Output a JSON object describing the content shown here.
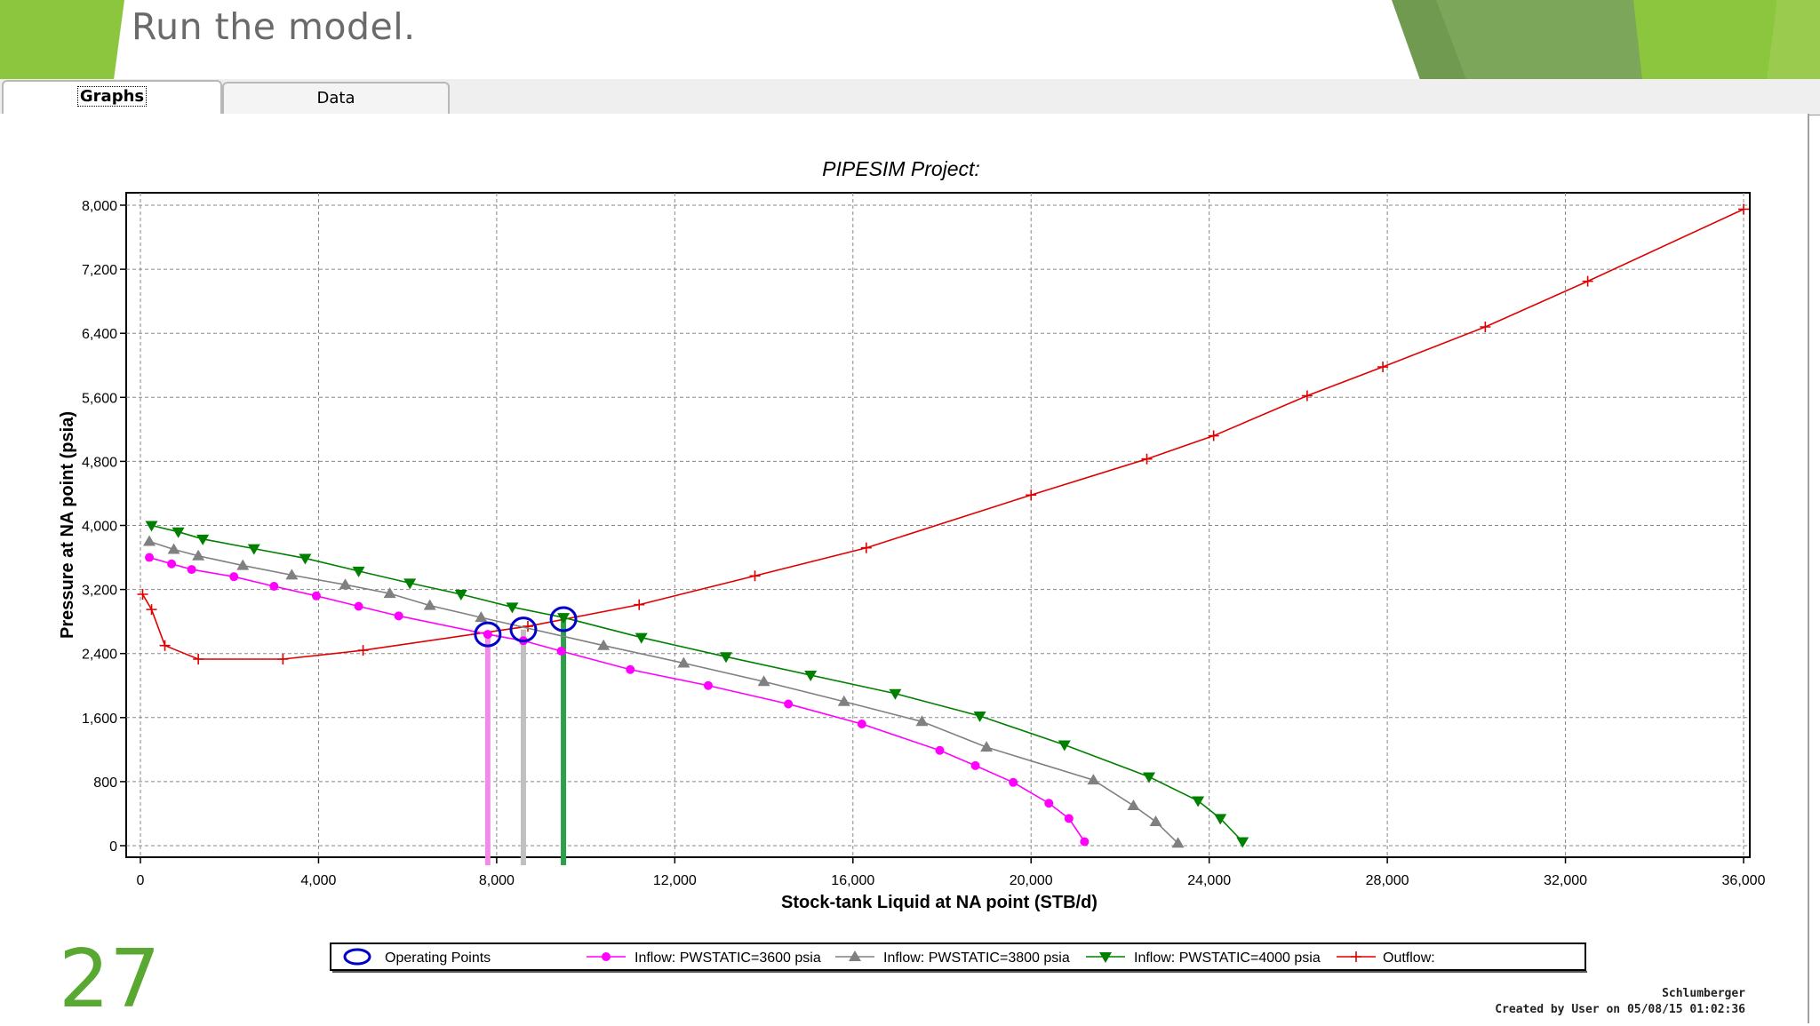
{
  "slide": {
    "title": "Run the model.",
    "page_number": "27"
  },
  "tabs": [
    {
      "label": "Graphs",
      "active": true
    },
    {
      "label": "Data",
      "active": false
    }
  ],
  "colors": {
    "brand_green": "#8cc63f",
    "dark_green": "#6f9a4f",
    "page_number": "#58a832",
    "series_3600": "#ff00ff",
    "series_3800": "#808080",
    "series_4000": "#008000",
    "outflow": "#e00000",
    "operating_points": "#0000cc",
    "drop_3600": "#f08ce6",
    "drop_3800": "#c0c0c0",
    "drop_4000": "#2ca04a"
  },
  "footer": {
    "company": "Schlumberger",
    "created": "Created by User on 05/08/15 01:02:36"
  },
  "chart_data": {
    "type": "line",
    "title": "PIPESIM Project:",
    "xlabel": "Stock-tank Liquid at NA point (STB/d)",
    "ylabel": "Pressure at NA point (psia)",
    "xlim": [
      0,
      36000
    ],
    "ylim": [
      0,
      8000
    ],
    "xticks": [
      0,
      4000,
      8000,
      12000,
      16000,
      20000,
      24000,
      28000,
      32000,
      36000
    ],
    "xtick_labels": [
      "0",
      "4,000",
      "8,000",
      "12,000",
      "16,000",
      "20,000",
      "24,000",
      "28,000",
      "32,000",
      "36,000"
    ],
    "yticks": [
      0,
      800,
      1600,
      2400,
      3200,
      4000,
      4800,
      5600,
      6400,
      7200,
      8000
    ],
    "ytick_labels": [
      "0",
      "800",
      "1,600",
      "2,400",
      "3,200",
      "4,000",
      "4,800",
      "5,600",
      "6,400",
      "7,200",
      "8,000"
    ],
    "grid": true,
    "legend_position": "bottom",
    "series": [
      {
        "name": "Inflow: PWSTATIC=3600 psia",
        "color": "#ff00ff",
        "marker": "circle",
        "x": [
          200,
          700,
          1150,
          2100,
          3000,
          3950,
          4900,
          5800,
          7800,
          8600,
          9450,
          11000,
          12750,
          14550,
          16200,
          17950,
          18750,
          19600,
          20400,
          20850,
          21200
        ],
        "y": [
          3600,
          3520,
          3450,
          3360,
          3240,
          3120,
          2990,
          2870,
          2640,
          2560,
          2430,
          2200,
          2000,
          1770,
          1520,
          1190,
          1000,
          790,
          530,
          340,
          50
        ]
      },
      {
        "name": "Inflow: PWSTATIC=3800 psia",
        "color": "#808080",
        "marker": "triangle",
        "x": [
          200,
          750,
          1300,
          2300,
          3400,
          4600,
          5600,
          6500,
          7650,
          10400,
          12200,
          14000,
          15800,
          17550,
          19000,
          21400,
          22300,
          22800,
          23300
        ],
        "y": [
          3800,
          3700,
          3620,
          3500,
          3380,
          3260,
          3150,
          3000,
          2850,
          2500,
          2280,
          2050,
          1800,
          1550,
          1230,
          820,
          500,
          300,
          30
        ]
      },
      {
        "name": "Inflow: PWSTATIC=4000 psia",
        "color": "#008000",
        "marker": "triangle-down",
        "x": [
          250,
          850,
          1400,
          2550,
          3700,
          4900,
          6050,
          7200,
          8350,
          9500,
          11250,
          13150,
          15050,
          16950,
          18850,
          20750,
          22650,
          23750,
          24250,
          24750
        ],
        "y": [
          4000,
          3920,
          3830,
          3710,
          3590,
          3430,
          3280,
          3140,
          2980,
          2850,
          2600,
          2360,
          2130,
          1900,
          1620,
          1260,
          860,
          560,
          340,
          50
        ]
      },
      {
        "name": "Outflow:",
        "color": "#e00000",
        "marker": "plus",
        "x": [
          50,
          250,
          550,
          1300,
          3200,
          5000,
          8700,
          11200,
          13800,
          16300,
          20000,
          22600,
          24100,
          26200,
          27900,
          30200,
          32500,
          36000
        ],
        "y": [
          3140,
          2950,
          2500,
          2330,
          2330,
          2440,
          2740,
          3010,
          3370,
          3720,
          4380,
          4830,
          5120,
          5620,
          5980,
          6480,
          7050,
          7950
        ]
      },
      {
        "name": "Operating Points",
        "color": "#0000cc",
        "marker": "ellipse-outline",
        "x": [
          7800,
          8600,
          9500
        ],
        "y": [
          2640,
          2700,
          2830
        ]
      }
    ]
  }
}
